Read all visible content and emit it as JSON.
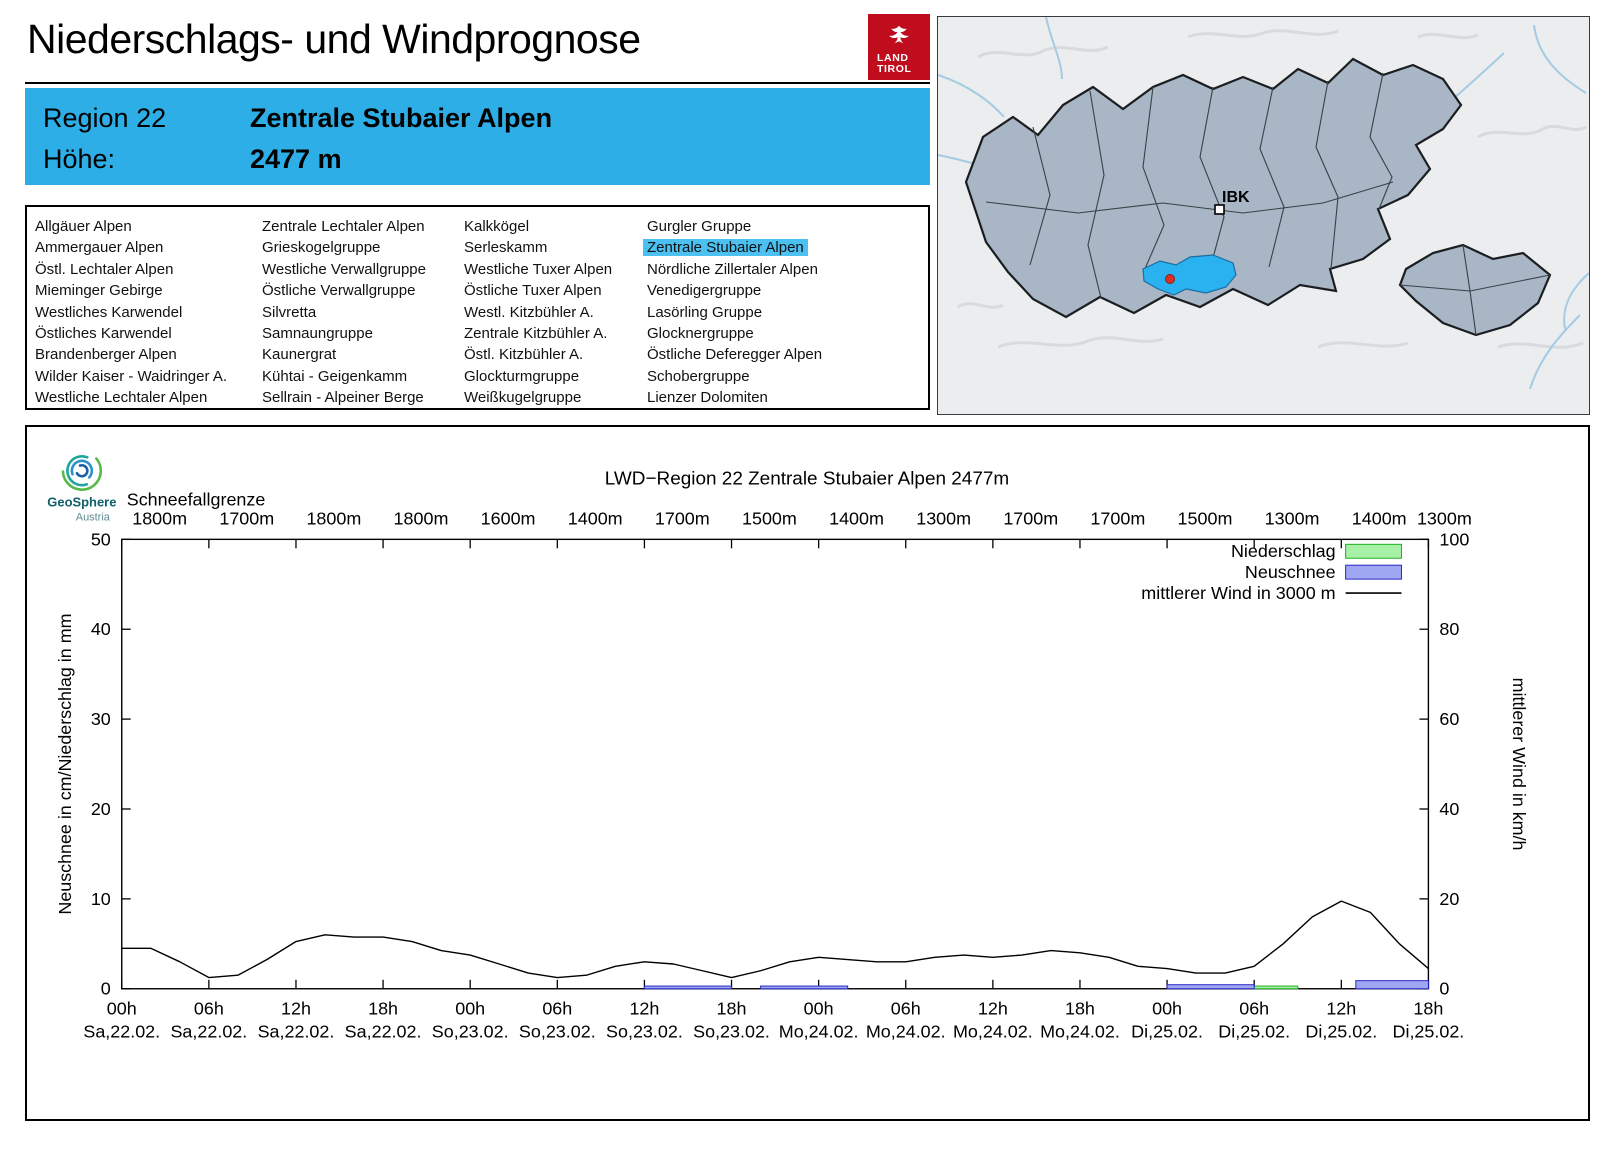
{
  "colors": {
    "accent_blue": "#2eaee6",
    "list_highlight": "#4cc0f0",
    "map_region": "#a9b6c5",
    "map_highlight": "#29b2ef",
    "tirol_red": "#c00d1e"
  },
  "header": {
    "title": "Niederschlags- und Windprognose",
    "logo_line1": "LAND",
    "logo_line2": "TIROL"
  },
  "region_box": {
    "region_label": "Region 22",
    "region_name": "Zentrale Stubaier Alpen",
    "height_label": "Höhe:",
    "height_value": "2477 m"
  },
  "region_list": {
    "highlight": {
      "col": 3,
      "row": 1
    },
    "columns": [
      [
        "Allgäuer Alpen",
        "Ammergauer Alpen",
        "Östl. Lechtaler Alpen",
        "Mieminger Gebirge",
        "Westliches Karwendel",
        "Östliches Karwendel",
        "Brandenberger Alpen",
        "Wilder Kaiser - Waidringer A.",
        "Westliche Lechtaler Alpen"
      ],
      [
        "Zentrale Lechtaler Alpen",
        "Grieskogelgruppe",
        "Westliche Verwallgruppe",
        "Östliche Verwallgruppe",
        "Silvretta",
        "Samnaungruppe",
        "Kaunergrat",
        "Kühtai - Geigenkamm",
        "Sellrain - Alpeiner Berge"
      ],
      [
        "Kalkkögel",
        "Serleskamm",
        "Westliche Tuxer Alpen",
        "Östliche Tuxer Alpen",
        "Westl. Kitzbühler A.",
        "Zentrale Kitzbühler A.",
        "Östl. Kitzbühler A.",
        "Glockturmgruppe",
        "Weißkugelgruppe"
      ],
      [
        "Gurgler Gruppe",
        "Zentrale Stubaier Alpen",
        "Nördliche Zillertaler Alpen",
        "Venedigergruppe",
        "Lasörling Gruppe",
        "Glocknergruppe",
        "Östliche Deferegger Alpen",
        "Schobergruppe",
        "Lienzer Dolomiten"
      ]
    ]
  },
  "map": {
    "city_label": "IBK"
  },
  "geosphere": {
    "name": "GeoSphere",
    "country": "Austria"
  },
  "chart_data": {
    "type": "line+bar",
    "title": "LWD−Region 22 Zentrale Stubaier Alpen 2477m",
    "x_range": [
      0,
      90
    ],
    "x_ticks": [
      {
        "hour": "00h",
        "date": "Sa,22.02."
      },
      {
        "hour": "06h",
        "date": "Sa,22.02."
      },
      {
        "hour": "12h",
        "date": "Sa,22.02."
      },
      {
        "hour": "18h",
        "date": "Sa,22.02."
      },
      {
        "hour": "00h",
        "date": "So,23.02."
      },
      {
        "hour": "06h",
        "date": "So,23.02."
      },
      {
        "hour": "12h",
        "date": "So,23.02."
      },
      {
        "hour": "18h",
        "date": "So,23.02."
      },
      {
        "hour": "00h",
        "date": "Mo,24.02."
      },
      {
        "hour": "06h",
        "date": "Mo,24.02."
      },
      {
        "hour": "12h",
        "date": "Mo,24.02."
      },
      {
        "hour": "18h",
        "date": "Mo,24.02."
      },
      {
        "hour": "00h",
        "date": "Di,25.02."
      },
      {
        "hour": "06h",
        "date": "Di,25.02."
      },
      {
        "hour": "12h",
        "date": "Di,25.02."
      },
      {
        "hour": "18h",
        "date": "Di,25.02."
      }
    ],
    "left_axis": {
      "label": "Neuschnee in cm/Niederschlag in mm",
      "range": [
        0,
        50
      ],
      "ticks": [
        0,
        10,
        20,
        30,
        40,
        50
      ]
    },
    "right_axis": {
      "label": "mittlerer Wind in km/h",
      "range": [
        0,
        100
      ],
      "ticks": [
        0,
        20,
        40,
        60,
        80,
        100
      ]
    },
    "snowline": {
      "label": "Schneefallgrenze",
      "values": [
        "1800m",
        "1700m",
        "1800m",
        "1800m",
        "1600m",
        "1400m",
        "1700m",
        "1500m",
        "1400m",
        "1300m",
        "1700m",
        "1700m",
        "1500m",
        "1300m",
        "1400m",
        "1300m"
      ]
    },
    "legend": [
      {
        "label": "Niederschlag",
        "swatch": "box",
        "fill": "#a6f1a6",
        "stroke": "#1faf1f"
      },
      {
        "label": "Neuschnee",
        "swatch": "box",
        "fill": "#9fa6f2",
        "stroke": "#2727c8"
      },
      {
        "label": "mittlerer Wind in 3000 m",
        "swatch": "line",
        "stroke": "#000000"
      }
    ],
    "series": [
      {
        "name": "Niederschlag",
        "type": "bar",
        "unit": "mm",
        "fill": "#a6f1a6",
        "stroke": "#1faf1f",
        "bars": [
          [
            78,
            81,
            0.3
          ]
        ]
      },
      {
        "name": "Neuschnee",
        "type": "bar",
        "unit": "cm",
        "fill": "#9fa6f2",
        "stroke": "#2727c8",
        "bars": [
          [
            36,
            42,
            0.3
          ],
          [
            44,
            50,
            0.3
          ],
          [
            72,
            78,
            0.45
          ],
          [
            85,
            90,
            0.9
          ]
        ]
      },
      {
        "name": "mittlerer Wind in 3000 m",
        "type": "line",
        "unit": "km/h",
        "axis": "right",
        "color": "#000000",
        "points": [
          [
            0,
            9
          ],
          [
            2,
            9
          ],
          [
            4,
            6
          ],
          [
            6,
            2.5
          ],
          [
            8,
            3
          ],
          [
            10,
            6.5
          ],
          [
            12,
            10.5
          ],
          [
            14,
            12
          ],
          [
            16,
            11.5
          ],
          [
            18,
            11.5
          ],
          [
            20,
            10.5
          ],
          [
            22,
            8.5
          ],
          [
            24,
            7.5
          ],
          [
            26,
            5.5
          ],
          [
            28,
            3.5
          ],
          [
            30,
            2.5
          ],
          [
            32,
            3
          ],
          [
            34,
            5
          ],
          [
            36,
            6
          ],
          [
            38,
            5.5
          ],
          [
            40,
            4
          ],
          [
            42,
            2.5
          ],
          [
            44,
            4
          ],
          [
            46,
            6
          ],
          [
            48,
            7
          ],
          [
            50,
            6.5
          ],
          [
            52,
            6
          ],
          [
            54,
            6
          ],
          [
            56,
            7
          ],
          [
            58,
            7.5
          ],
          [
            60,
            7
          ],
          [
            62,
            7.5
          ],
          [
            64,
            8.5
          ],
          [
            66,
            8
          ],
          [
            68,
            7
          ],
          [
            70,
            5
          ],
          [
            72,
            4.5
          ],
          [
            74,
            3.5
          ],
          [
            76,
            3.5
          ],
          [
            78,
            5
          ],
          [
            80,
            10
          ],
          [
            82,
            16
          ],
          [
            84,
            19.5
          ],
          [
            86,
            17
          ],
          [
            88,
            10
          ],
          [
            90,
            4.5
          ]
        ]
      }
    ]
  }
}
